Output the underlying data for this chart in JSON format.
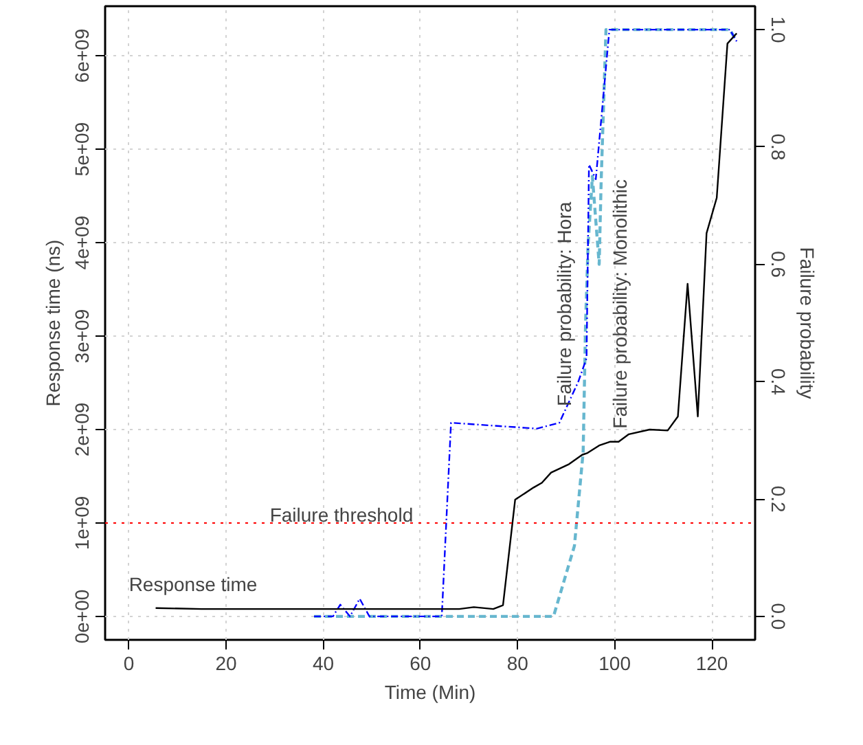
{
  "chart_data": {
    "type": "line",
    "xlabel": "Time (Min)",
    "ylabel": "Response time (ns)",
    "y2label": "Failure probability",
    "xlim": [
      -4.9,
      128.9
    ],
    "xticks": [
      0,
      20,
      40,
      60,
      80,
      100,
      120
    ],
    "ylim": [
      -250000000,
      6530000000
    ],
    "yticks": [
      {
        "value": 0,
        "label": "0e+00"
      },
      {
        "value": 1000000000,
        "label": "1e+09"
      },
      {
        "value": 2000000000,
        "label": "2e+09"
      },
      {
        "value": 3000000000,
        "label": "3e+09"
      },
      {
        "value": 4000000000,
        "label": "4e+09"
      },
      {
        "value": 5000000000,
        "label": "5e+09"
      },
      {
        "value": 6000000000,
        "label": "6e+09"
      }
    ],
    "y2lim": [
      -0.04,
      1.04
    ],
    "y2ticks": [
      {
        "value": 0,
        "label": "0.0"
      },
      {
        "value": 0.2,
        "label": "0.2"
      },
      {
        "value": 0.4,
        "label": "0.4"
      },
      {
        "value": 0.6,
        "label": "0.6"
      },
      {
        "value": 0.8,
        "label": "0.8"
      },
      {
        "value": 1,
        "label": "1.0"
      }
    ],
    "grid": true,
    "series": [
      {
        "color": "#000000",
        "line_style": "solid",
        "x": [
          5.5,
          15,
          30,
          45,
          60,
          68,
          71,
          75,
          77,
          79.5,
          83.3,
          85,
          86.9,
          90.6,
          93.3,
          94.4,
          96.8,
          99.1,
          100.8,
          102.9,
          107.2,
          110.9,
          113,
          115,
          117.1,
          118.9,
          121,
          123.2,
          125.1
        ],
        "values": [
          90000000,
          80000000,
          80000000,
          80000000,
          80000000,
          80000000,
          100000000,
          80000000,
          120000000,
          1250000000,
          1380000000,
          1430000000,
          1540000000,
          1630000000,
          1730000000,
          1750000000,
          1830000000,
          1870000000,
          1870000000,
          1950000000,
          2000000000,
          1990000000,
          2140000000,
          3560000000,
          2140000000,
          4100000000,
          4480000000,
          6130000000,
          6240000000
        ]
      },
      {
        "color": "#0000ff",
        "line_style": "dashdot",
        "axis": "y2",
        "x": [
          38.1,
          42,
          43.5,
          45.5,
          47.5,
          49.5,
          64.4,
          66.3,
          84,
          88.6,
          92.5,
          94.2,
          94.7,
          96.1,
          98.9,
          123.7,
          125.1
        ],
        "values": [
          0,
          0,
          0.02,
          0,
          0.03,
          0,
          0,
          0.33,
          0.32,
          0.33,
          0.4,
          0.44,
          0.77,
          0.745,
          1,
          1,
          0.98
        ]
      },
      {
        "color": "#67b7cf",
        "line_style": "dashed",
        "axis": "y2",
        "x": [
          38.1,
          87.4,
          91.7,
          93.5,
          94,
          94.5,
          95.4,
          96.8,
          97.2,
          98.2,
          123.7,
          125.1
        ],
        "values": [
          0,
          0,
          0.12,
          0.28,
          0.5,
          0.63,
          0.75,
          0.6,
          0.74,
          1,
          1,
          0.98
        ]
      }
    ],
    "ref_lines": [
      {
        "axis": "y",
        "value": 1000000000,
        "color": "#ff0000",
        "line_style": "dotted"
      }
    ],
    "annotations": [
      "Response time",
      "Failure threshold",
      "Failure probability: Hora",
      "Failure probability: Monolithic"
    ]
  }
}
